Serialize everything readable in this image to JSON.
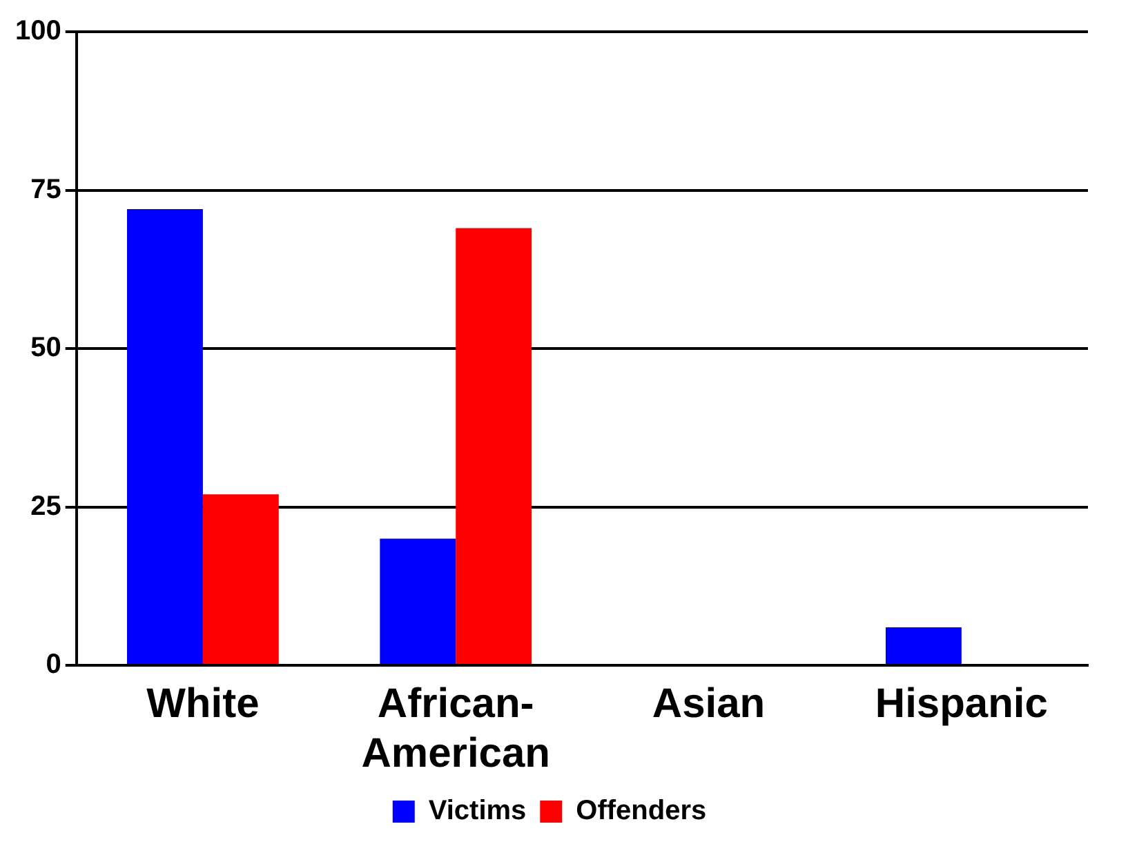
{
  "chart_data": {
    "type": "bar",
    "categories": [
      "White",
      "African-\nAmerican",
      "Asian",
      "Hispanic"
    ],
    "series": [
      {
        "name": "Victims",
        "color": "#0000ff",
        "values": [
          72,
          20,
          0,
          6
        ]
      },
      {
        "name": "Offenders",
        "color": "#ff0000",
        "values": [
          27,
          69,
          0,
          0
        ]
      }
    ],
    "ylim": [
      0,
      100
    ],
    "yticks": [
      0,
      25,
      50,
      75,
      100
    ],
    "grid": "y",
    "legend": "bottom"
  }
}
